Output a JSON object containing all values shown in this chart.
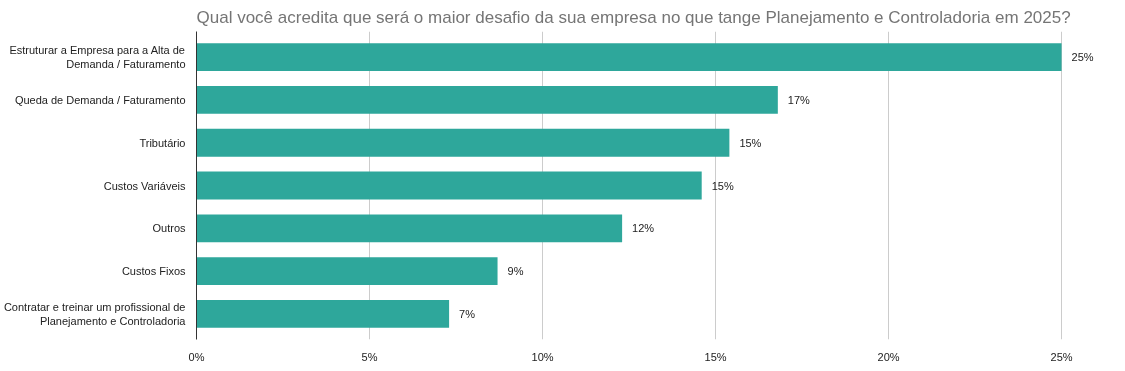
{
  "chart_data": {
    "type": "bar",
    "orientation": "horizontal",
    "title": "Qual você acredita que será o maior desafio da sua empresa no que tange Planejamento e Controladoria em 2025?",
    "categories": [
      "Estruturar a Empresa para a Alta de Demanda / Faturamento",
      "Queda de Demanda / Faturamento",
      "Tributário",
      "Custos Variáveis",
      "Outros",
      "Custos Fixos",
      "Contratar e treinar um profissional de Planejamento e Controladoria"
    ],
    "values": [
      25.0,
      16.8,
      15.4,
      14.6,
      12.3,
      8.7,
      7.3
    ],
    "value_labels": [
      "25%",
      "17%",
      "15%",
      "15%",
      "12%",
      "9%",
      "7%"
    ],
    "color": "#2ea79b",
    "xlim": [
      0,
      25
    ],
    "xticks": [
      {
        "value": 0,
        "label": "0%"
      },
      {
        "value": 5,
        "label": "5%"
      },
      {
        "value": 10,
        "label": "10%"
      },
      {
        "value": 15,
        "label": "15%"
      },
      {
        "value": 20,
        "label": "20%"
      },
      {
        "value": 25,
        "label": "25%"
      }
    ],
    "grid": "x"
  }
}
